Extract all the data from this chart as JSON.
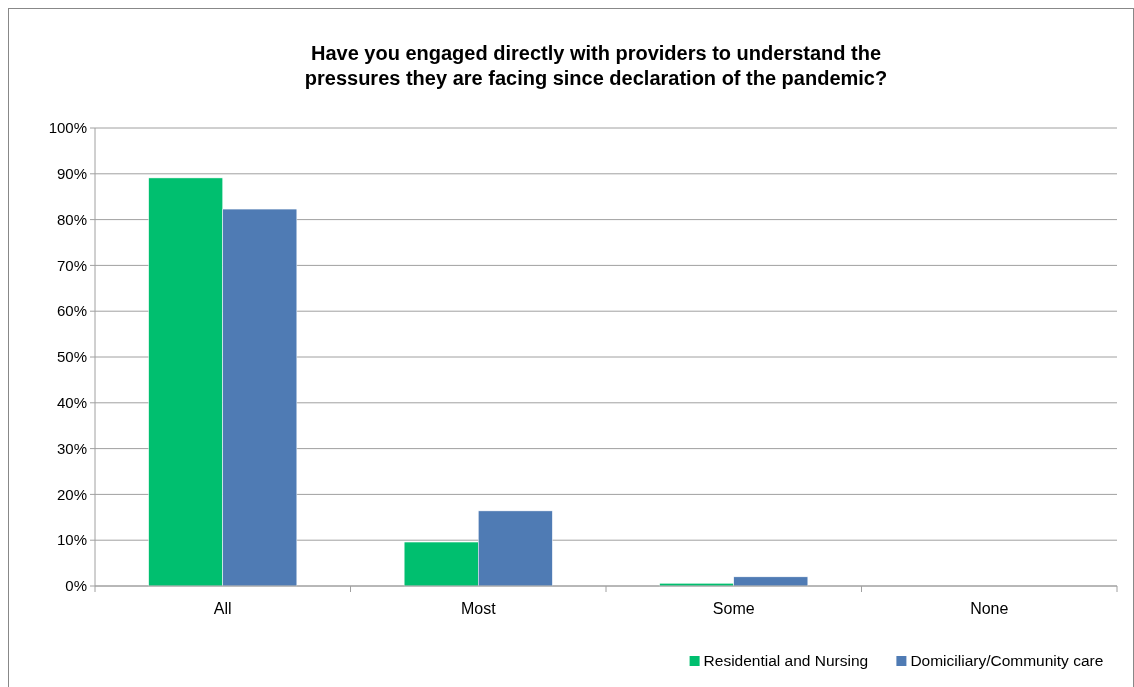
{
  "chart_data": {
    "type": "bar",
    "title": "Have you engaged directly with providers to understand the\npressures they are facing since declaration of the pandemic?",
    "categories": [
      "All",
      "Most",
      "Some",
      "None"
    ],
    "series": [
      {
        "name": "Residential and Nursing",
        "color": "#00bf6f",
        "values": [
          89.1,
          9.6,
          0.6,
          0
        ]
      },
      {
        "name": "Domiciliary/Community care",
        "color": "#4f7bb4",
        "values": [
          82.3,
          16.4,
          2.0,
          0
        ]
      }
    ],
    "ylim": [
      0,
      100
    ],
    "yticks": [
      {
        "value": 0,
        "label": "0%"
      },
      {
        "value": 10,
        "label": "10%"
      },
      {
        "value": 20,
        "label": "20%"
      },
      {
        "value": 30,
        "label": "30%"
      },
      {
        "value": 40,
        "label": "40%"
      },
      {
        "value": 50,
        "label": "50%"
      },
      {
        "value": 60,
        "label": "60%"
      },
      {
        "value": 70,
        "label": "70%"
      },
      {
        "value": 80,
        "label": "80%"
      },
      {
        "value": 90,
        "label": "90%"
      },
      {
        "value": 100,
        "label": "100%"
      }
    ],
    "grid": "y",
    "legend": "bottom right"
  }
}
